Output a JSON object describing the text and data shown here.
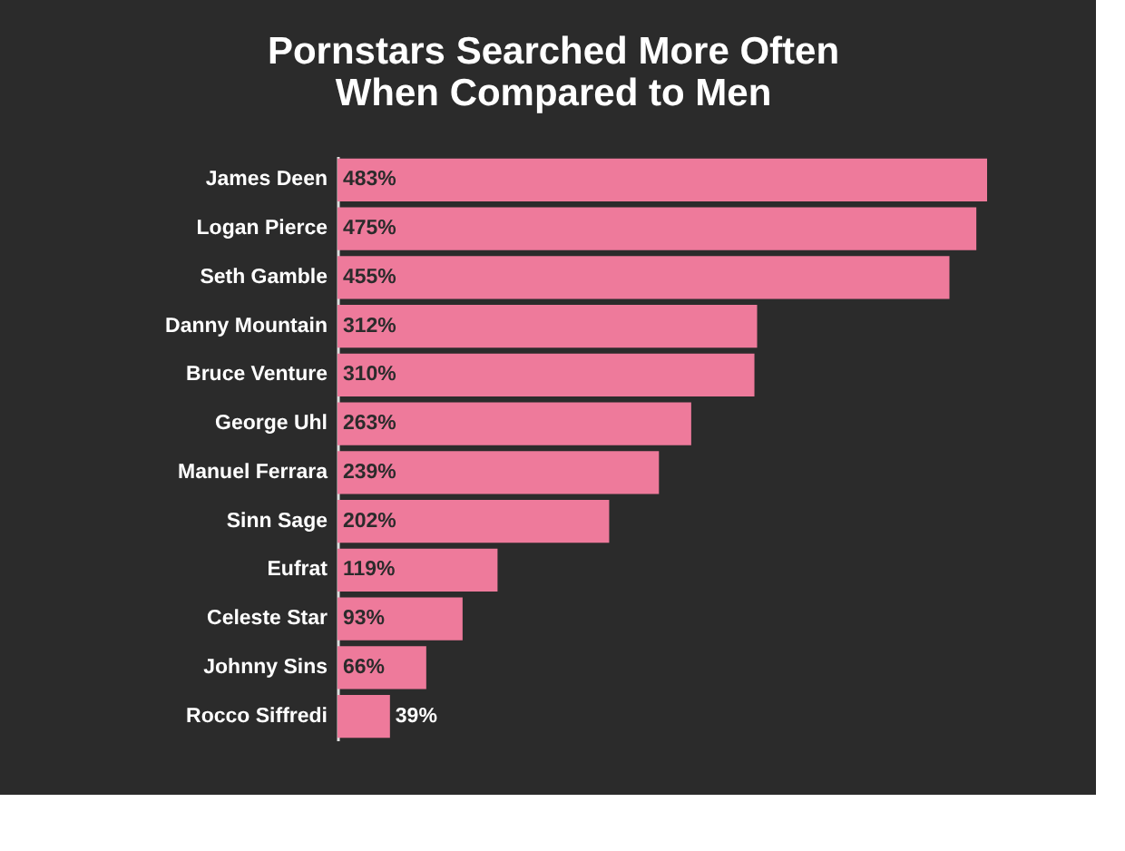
{
  "chart_data": {
    "type": "bar",
    "orientation": "horizontal",
    "title": "Pornstars Searched More Often\nWhen Compared to Men",
    "categories": [
      "James Deen",
      "Logan Pierce",
      "Seth Gamble",
      "Danny Mountain",
      "Bruce Venture",
      "George Uhl",
      "Manuel Ferrara",
      "Sinn Sage",
      "Eufrat",
      "Celeste Star",
      "Johnny Sins",
      "Rocco Siffredi"
    ],
    "values": [
      483,
      475,
      455,
      312,
      310,
      263,
      239,
      202,
      119,
      93,
      66,
      39
    ],
    "value_labels": [
      "483%",
      "475%",
      "455%",
      "312%",
      "310%",
      "263%",
      "239%",
      "202%",
      "119%",
      "93%",
      "66%",
      "39%"
    ],
    "color": "#ee7a9b"
  }
}
